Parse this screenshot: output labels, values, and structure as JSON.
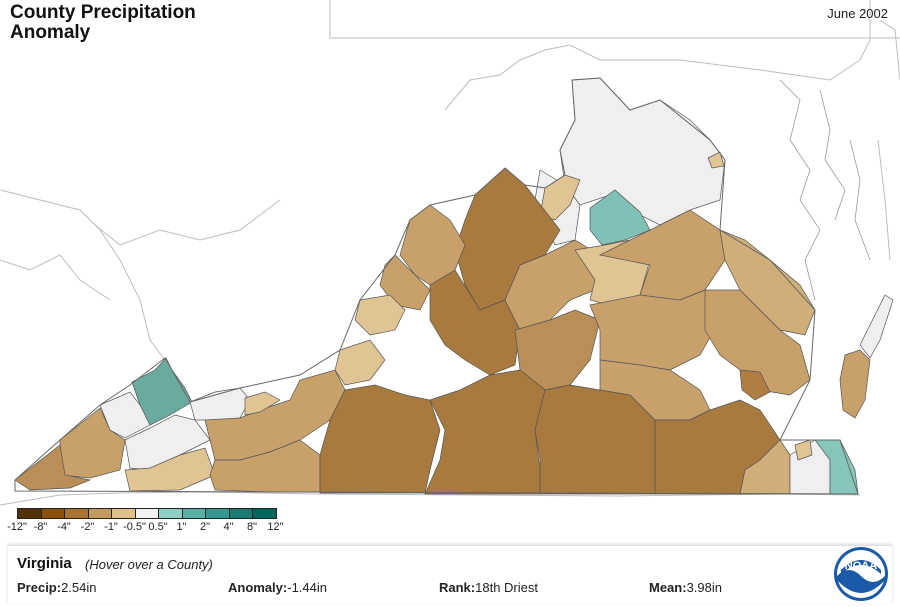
{
  "map": {
    "title_line1": "County Precipitation",
    "title_line2": "Anomaly",
    "date": "June 2002"
  },
  "legend": {
    "labels": [
      "-12\"",
      "-8\"",
      "-4\"",
      "-2\"",
      "-1\"",
      "-0.5\"",
      "0.5\"",
      "1\"",
      "2\"",
      "4\"",
      "8\"",
      "12\""
    ],
    "colors": [
      "#543005",
      "#8c510a",
      "#a8742f",
      "#c49a5f",
      "#dfc08a",
      "#f2f2f2",
      "#8fd0c6",
      "#5ab0a4",
      "#35978f",
      "#1b7a72",
      "#01665e",
      "#003c30"
    ]
  },
  "colors": {
    "dark_brown": "#a87a3e",
    "mid_brown": "#b98e57",
    "light_brown": "#d0ae79",
    "pale_tan": "#e2c89a",
    "near_normal": "#efefef",
    "teal": "#6fb3a8",
    "light_teal": "#86c6bb"
  },
  "info": {
    "state": "Virginia",
    "hint": "(Hover over a County)",
    "precip_label": "Precip:",
    "precip_value": "2.54in",
    "anomaly_label": "Anomaly:",
    "anomaly_value": "-1.44in",
    "rank_label": "Rank:",
    "rank_value": "18th Driest",
    "mean_label": "Mean:",
    "mean_value": "3.98in"
  },
  "logo": {
    "text": "NOAA",
    "icon": "noaa-logo-icon"
  }
}
